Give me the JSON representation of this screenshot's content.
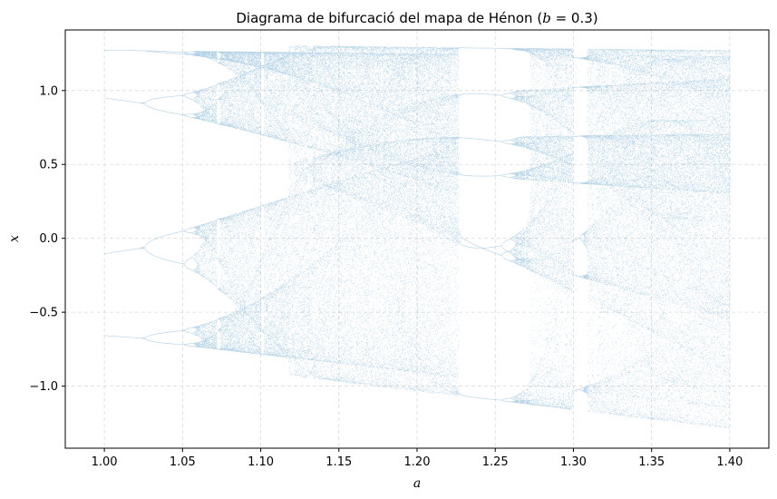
{
  "chart_data": {
    "type": "scatter",
    "title": "Diagrama de bifurcació del mapa de Hénon (b = 0.3)",
    "title_parts": {
      "prefix": "Diagrama de bifurcació del mapa de Hénon (",
      "b_symbol": "b",
      "b_value": " = 0.3",
      "suffix": ")"
    },
    "xlabel": "a",
    "ylabel": "x",
    "xlim": [
      0.975,
      1.425
    ],
    "ylim": [
      -1.42,
      1.41
    ],
    "x_ticks": [
      1.0,
      1.05,
      1.1,
      1.15,
      1.2,
      1.25,
      1.3,
      1.35,
      1.4
    ],
    "x_tick_labels": [
      "1.00",
      "1.05",
      "1.10",
      "1.15",
      "1.20",
      "1.25",
      "1.30",
      "1.35",
      "1.40"
    ],
    "y_ticks": [
      -1.0,
      -0.5,
      0.0,
      0.5,
      1.0
    ],
    "y_tick_labels": [
      "−1.0",
      "−0.5",
      "0.0",
      "0.5",
      "1.0"
    ],
    "grid": true,
    "map": {
      "name": "Hénon",
      "b": 0.3,
      "a_range": [
        1.0,
        1.4
      ],
      "a_steps": 1400,
      "transient_iterations": 300,
      "plotted_iterations": 100
    },
    "series": [
      {
        "color": "#1f77b4",
        "marker_size": 0.6,
        "alpha": 0.35
      }
    ]
  }
}
